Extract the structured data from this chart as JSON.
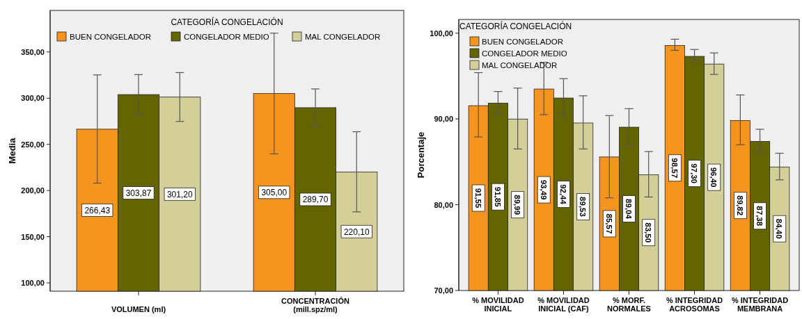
{
  "chart_data": [
    {
      "type": "bar",
      "ylabel": "Media",
      "legend_title": "CATEGORÍA CONGELACIÓN",
      "legend": "top",
      "grid": false,
      "categories": [
        "VOLUMEN (ml)",
        "CONCENTRACIÓN (mill.spz/ml)"
      ],
      "ylim": [
        91,
        395
      ],
      "yticks": [
        {
          "value": 100,
          "label": "100,00"
        },
        {
          "value": 150,
          "label": "150,00"
        },
        {
          "value": 200,
          "label": "200,00"
        },
        {
          "value": 250,
          "label": "250,00"
        },
        {
          "value": 300,
          "label": "300,00"
        },
        {
          "value": 350,
          "label": "350,00"
        }
      ],
      "series": [
        {
          "name": "BUEN CONGELADOR",
          "color": "#f7941d",
          "values": [
            266.43,
            305.0
          ],
          "value_labels": [
            "266,43",
            "305,00"
          ],
          "errors": [
            [
              208.0,
              325.2
            ],
            [
              239.7,
              370.4
            ]
          ]
        },
        {
          "name": "CONGELADOR MEDIO",
          "color": "#646400",
          "values": [
            303.87,
            289.7
          ],
          "value_labels": [
            "303,87",
            "289,70"
          ],
          "errors": [
            [
              282.5,
              325.5
            ],
            [
              269.2,
              310.0
            ]
          ]
        },
        {
          "name": "MAL CONGELADOR",
          "color": "#d4cf98",
          "values": [
            301.2,
            220.1
          ],
          "value_labels": [
            "301,20",
            "220,10"
          ],
          "errors": [
            [
              274.8,
              327.7
            ],
            [
              176.9,
              263.7
            ]
          ]
        }
      ]
    },
    {
      "type": "bar",
      "ylabel": "Porcentaje",
      "legend_title": "CATEGORÍA CONGELACIÓN",
      "legend": "top left",
      "grid": false,
      "categories": [
        "% MOVILIDAD INICIAL",
        "% MOVILIDAD INICIAL (CAF)",
        "% MORF. NORMALES",
        "% INTEGRIDAD ACROSOMAS",
        "% INTEGRIDAD MEMBRANA"
      ],
      "ylim": [
        70,
        101.6
      ],
      "yticks": [
        {
          "value": 70,
          "label": "70,00"
        },
        {
          "value": 80,
          "label": "80,00"
        },
        {
          "value": 90,
          "label": "90,00"
        },
        {
          "value": 100,
          "label": "100,00"
        }
      ],
      "series": [
        {
          "name": "BUEN CONGELADOR",
          "color": "#f7941d",
          "values": [
            91.55,
            93.49,
            85.57,
            98.57,
            89.82
          ],
          "value_labels": [
            "91,55",
            "93,49",
            "85,57",
            "98,57",
            "89,82"
          ],
          "errors": [
            [
              87.9,
              95.4
            ],
            [
              90.5,
              96.6
            ],
            [
              80.8,
              90.4
            ],
            [
              98.0,
              99.3
            ],
            [
              87.0,
              92.8
            ]
          ]
        },
        {
          "name": "CONGELADOR MEDIO",
          "color": "#646400",
          "values": [
            91.85,
            92.44,
            89.04,
            97.3,
            87.38
          ],
          "value_labels": [
            "91,85",
            "92,44",
            "89,04",
            "97,30",
            "87,38"
          ],
          "errors": [
            [
              90.6,
              93.2
            ],
            [
              90.3,
              94.7
            ],
            [
              87.0,
              91.2
            ],
            [
              96.7,
              98.1
            ],
            [
              86.1,
              88.8
            ]
          ]
        },
        {
          "name": "MAL CONGELADOR",
          "color": "#d4cf98",
          "values": [
            89.99,
            89.53,
            83.5,
            96.4,
            84.4
          ],
          "value_labels": [
            "89,99",
            "89,53",
            "83,50",
            "96,40",
            "84,40"
          ],
          "errors": [
            [
              86.5,
              93.6
            ],
            [
              86.5,
              92.7
            ],
            [
              80.9,
              86.2
            ],
            [
              95.2,
              97.7
            ],
            [
              82.9,
              86.0
            ]
          ]
        }
      ]
    }
  ]
}
